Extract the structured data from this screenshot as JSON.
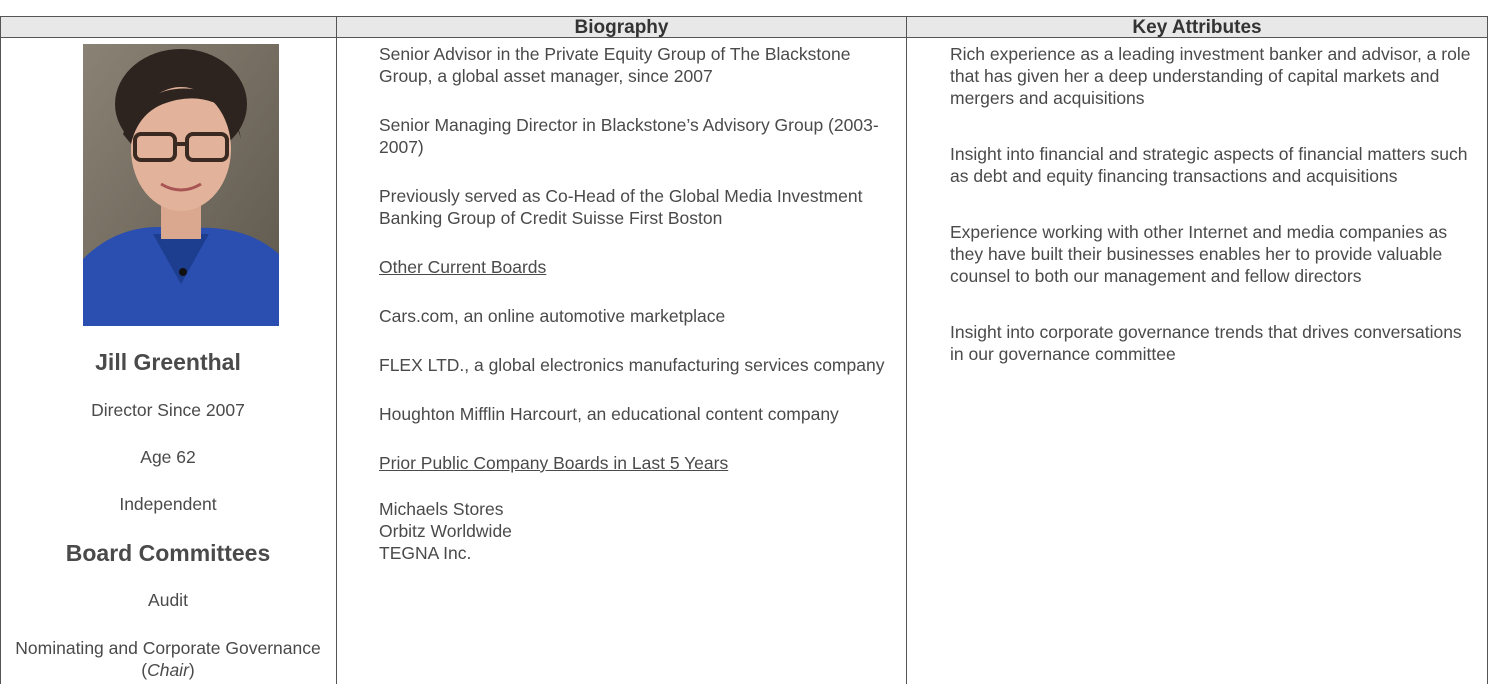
{
  "header": {
    "columns": [
      "",
      "Biography",
      "Key Attributes"
    ]
  },
  "person": {
    "name": "Jill Greenthal",
    "details": [
      "Director Since 2007",
      "Age 62",
      "Independent"
    ],
    "committees_title": "Board Committees",
    "committees": [
      "Audit"
    ],
    "chair_committee": {
      "before": "Nominating and Corporate Governance (",
      "italic": "Chair",
      "after": ")"
    }
  },
  "biography": [
    {
      "text": "Senior Advisor in the Private Equity Group of The Blackstone Group, a global asset manager, since 2007"
    },
    {
      "text": "Senior Managing Director in Blackstone’s Advisory Group (2003-2007)"
    },
    {
      "text": "Previously served as Co-Head of the Global Media Investment Banking Group of Credit Suisse First Boston"
    },
    {
      "text": "Other Current Boards",
      "heading": true
    },
    {
      "text": "Cars.com, an online automotive marketplace"
    },
    {
      "text": "FLEX LTD., a global electronics manufacturing services company"
    },
    {
      "text": "Houghton Mifflin Harcourt, an educational content company"
    },
    {
      "text": "Prior Public Company Boards in Last 5 Years",
      "heading": true
    }
  ],
  "prior_boards": [
    "Michaels Stores",
    "Orbitz Worldwide",
    "TEGNA Inc."
  ],
  "key_attributes": [
    "Rich experience as a leading investment banker and advisor, a role that has given her a deep understanding of capital markets and mergers and acquisitions",
    "Insight into financial and strategic aspects of financial matters such as debt and equity financing transactions and acquisitions",
    "Experience working with other Internet and media companies as they have built their businesses enables her to provide valuable counsel to both our management and fellow directors",
    "Insight into corporate governance trends that drives conversations in our governance committee"
  ]
}
